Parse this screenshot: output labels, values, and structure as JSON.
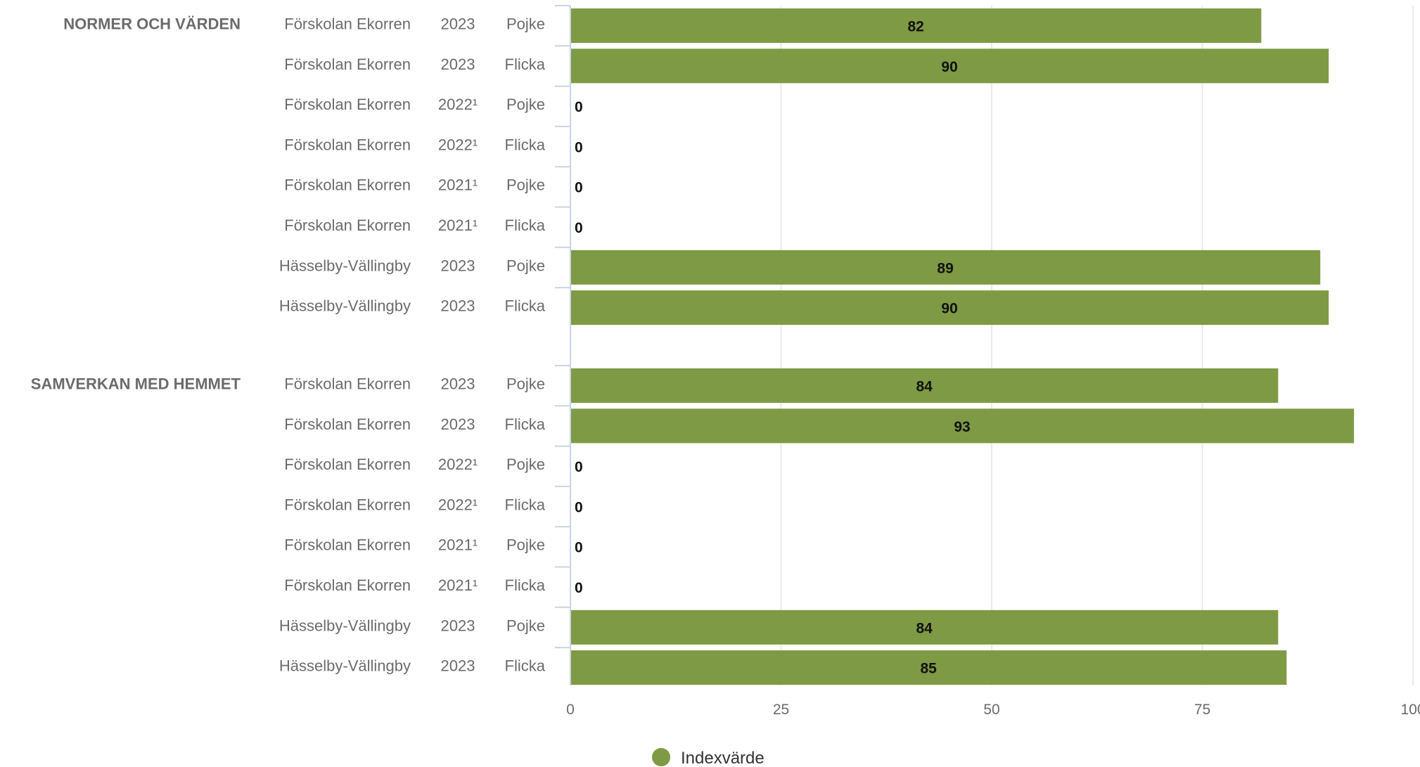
{
  "chart_data": {
    "type": "bar",
    "orientation": "horizontal",
    "xlim": [
      0,
      100
    ],
    "xticks": [
      0,
      25,
      50,
      75,
      100
    ],
    "grid": true,
    "legend_position": "bottom",
    "colors": {
      "bar": "#7e9a44",
      "grid": "#e3e3e3",
      "axis": "#c8d4e4"
    },
    "series": [
      {
        "name": "Indexvärde",
        "color": "#7e9a44"
      }
    ],
    "groups": [
      {
        "label": "NORMER OCH VÄRDEN",
        "rows": [
          {
            "unit": "Förskolan Ekorren",
            "year": "2023",
            "gender": "Pojke",
            "value": 82
          },
          {
            "unit": "Förskolan Ekorren",
            "year": "2023",
            "gender": "Flicka",
            "value": 90
          },
          {
            "unit": "Förskolan Ekorren",
            "year": "2022¹",
            "gender": "Pojke",
            "value": 0
          },
          {
            "unit": "Förskolan Ekorren",
            "year": "2022¹",
            "gender": "Flicka",
            "value": 0
          },
          {
            "unit": "Förskolan Ekorren",
            "year": "2021¹",
            "gender": "Pojke",
            "value": 0
          },
          {
            "unit": "Förskolan Ekorren",
            "year": "2021¹",
            "gender": "Flicka",
            "value": 0
          },
          {
            "unit": "Hässelby-Vällingby",
            "year": "2023",
            "gender": "Pojke",
            "value": 89
          },
          {
            "unit": "Hässelby-Vällingby",
            "year": "2023",
            "gender": "Flicka",
            "value": 90
          }
        ]
      },
      {
        "label": "SAMVERKAN MED HEMMET",
        "rows": [
          {
            "unit": "Förskolan Ekorren",
            "year": "2023",
            "gender": "Pojke",
            "value": 84
          },
          {
            "unit": "Förskolan Ekorren",
            "year": "2023",
            "gender": "Flicka",
            "value": 93
          },
          {
            "unit": "Förskolan Ekorren",
            "year": "2022¹",
            "gender": "Pojke",
            "value": 0
          },
          {
            "unit": "Förskolan Ekorren",
            "year": "2022¹",
            "gender": "Flicka",
            "value": 0
          },
          {
            "unit": "Förskolan Ekorren",
            "year": "2021¹",
            "gender": "Pojke",
            "value": 0
          },
          {
            "unit": "Förskolan Ekorren",
            "year": "2021¹",
            "gender": "Flicka",
            "value": 0
          },
          {
            "unit": "Hässelby-Vällingby",
            "year": "2023",
            "gender": "Pojke",
            "value": 84
          },
          {
            "unit": "Hässelby-Vällingby",
            "year": "2023",
            "gender": "Flicka",
            "value": 85
          }
        ]
      }
    ]
  }
}
